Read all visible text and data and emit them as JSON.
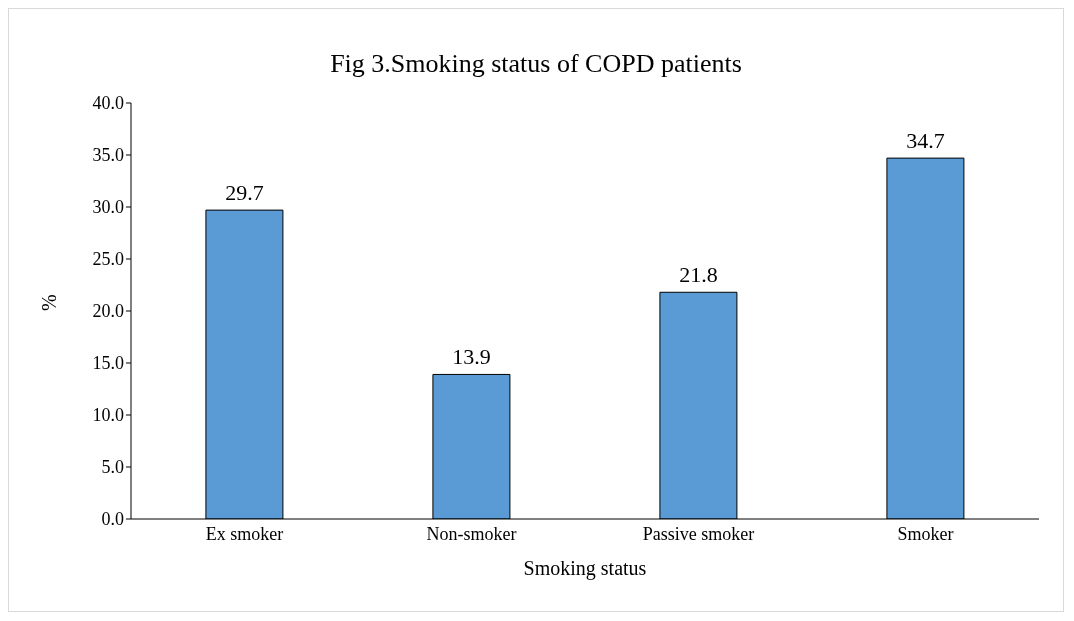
{
  "chart_data": {
    "type": "bar",
    "title": "Fig 3.Smoking status of COPD patients",
    "xlabel": "Smoking status",
    "ylabel": "%",
    "categories": [
      "Ex smoker",
      "Non-smoker",
      "Passive smoker",
      "Smoker"
    ],
    "values": [
      29.7,
      13.9,
      21.8,
      34.7
    ],
    "color": "#5b9bd5",
    "ylim": [
      0,
      40
    ],
    "yticks": [
      {
        "value": 0,
        "label": "0.0"
      },
      {
        "value": 5,
        "label": "5.0"
      },
      {
        "value": 10,
        "label": "10.0"
      },
      {
        "value": 15,
        "label": "15.0"
      },
      {
        "value": 20,
        "label": "20.0"
      },
      {
        "value": 25,
        "label": "25.0"
      },
      {
        "value": 30,
        "label": "30.0"
      },
      {
        "value": 35,
        "label": "35.0"
      },
      {
        "value": 40,
        "label": "40.0"
      }
    ],
    "data_labels": true
  }
}
